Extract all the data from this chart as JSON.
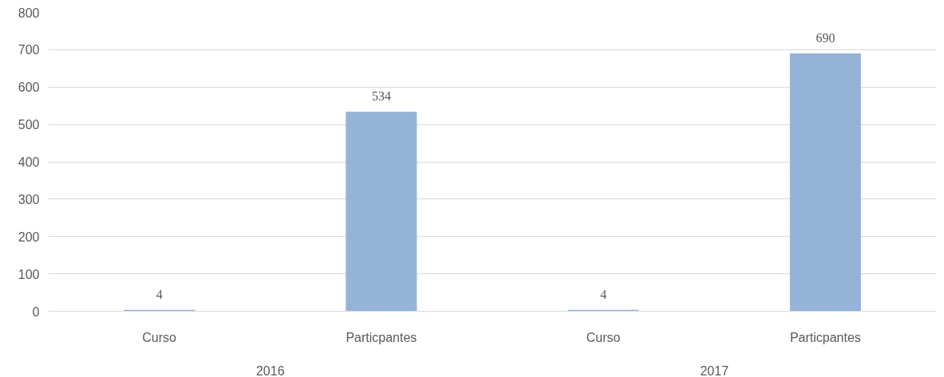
{
  "chart_data": {
    "type": "bar",
    "categories": [
      "Curso",
      "Particpantes",
      "Curso",
      "Particpantes"
    ],
    "values": [
      4,
      534,
      4,
      690
    ],
    "color": "#95b3d7",
    "ylim": [
      0,
      800
    ],
    "yticks": [
      0,
      100,
      200,
      300,
      400,
      500,
      600,
      700,
      800
    ],
    "grid": "y",
    "data_labels": true,
    "annotations": [
      "2016",
      "2017"
    ]
  }
}
